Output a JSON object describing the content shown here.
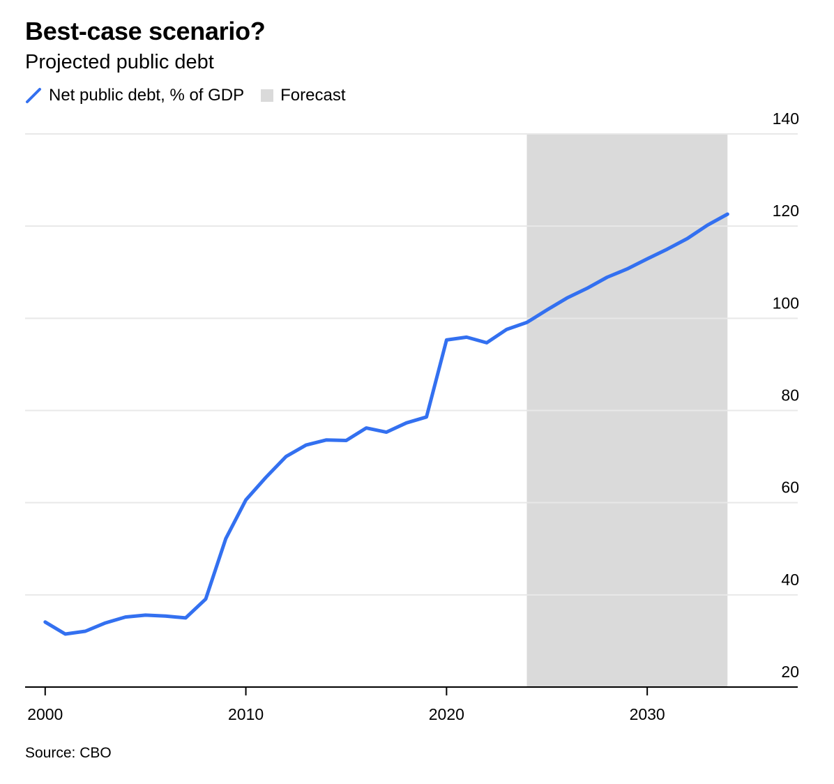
{
  "title": "Best-case scenario?",
  "subtitle": "Projected public debt",
  "legend": {
    "line_label": "Net public debt, % of GDP",
    "area_label": "Forecast"
  },
  "source": "Source: CBO",
  "colors": {
    "line": "#3370f0",
    "forecast": "#dadada",
    "grid": "#e8e8e8",
    "axis": "#000000"
  },
  "chart_data": {
    "type": "line",
    "title": "Best-case scenario?",
    "subtitle": "Projected public debt",
    "xlabel": "",
    "ylabel": "",
    "xlim": [
      1999,
      2037.5
    ],
    "ylim": [
      20,
      140
    ],
    "y_axis_side": "right",
    "grid": true,
    "legend_position": "top-left",
    "x_ticks": [
      2000,
      2010,
      2020,
      2030
    ],
    "y_ticks": [
      20,
      40,
      60,
      80,
      100,
      120,
      140
    ],
    "shaded_regions": [
      {
        "label": "Forecast",
        "x_start": 2024,
        "x_end": 2034
      }
    ],
    "series": [
      {
        "name": "Net public debt, % of GDP",
        "x": [
          2000,
          2001,
          2002,
          2003,
          2004,
          2005,
          2006,
          2007,
          2008,
          2009,
          2010,
          2011,
          2012,
          2013,
          2014,
          2015,
          2016,
          2017,
          2018,
          2019,
          2020,
          2021,
          2022,
          2023,
          2024,
          2025,
          2026,
          2027,
          2028,
          2029,
          2030,
          2031,
          2032,
          2033,
          2034
        ],
        "values": [
          34.1,
          31.5,
          32.1,
          33.9,
          35.2,
          35.6,
          35.4,
          35.0,
          39.1,
          52.2,
          60.6,
          65.5,
          70.0,
          72.5,
          73.6,
          73.5,
          76.2,
          75.3,
          77.3,
          78.6,
          95.3,
          95.9,
          94.7,
          97.6,
          99.1,
          101.8,
          104.4,
          106.5,
          108.9,
          110.7,
          112.9,
          115.0,
          117.3,
          120.2,
          122.6
        ]
      }
    ]
  }
}
